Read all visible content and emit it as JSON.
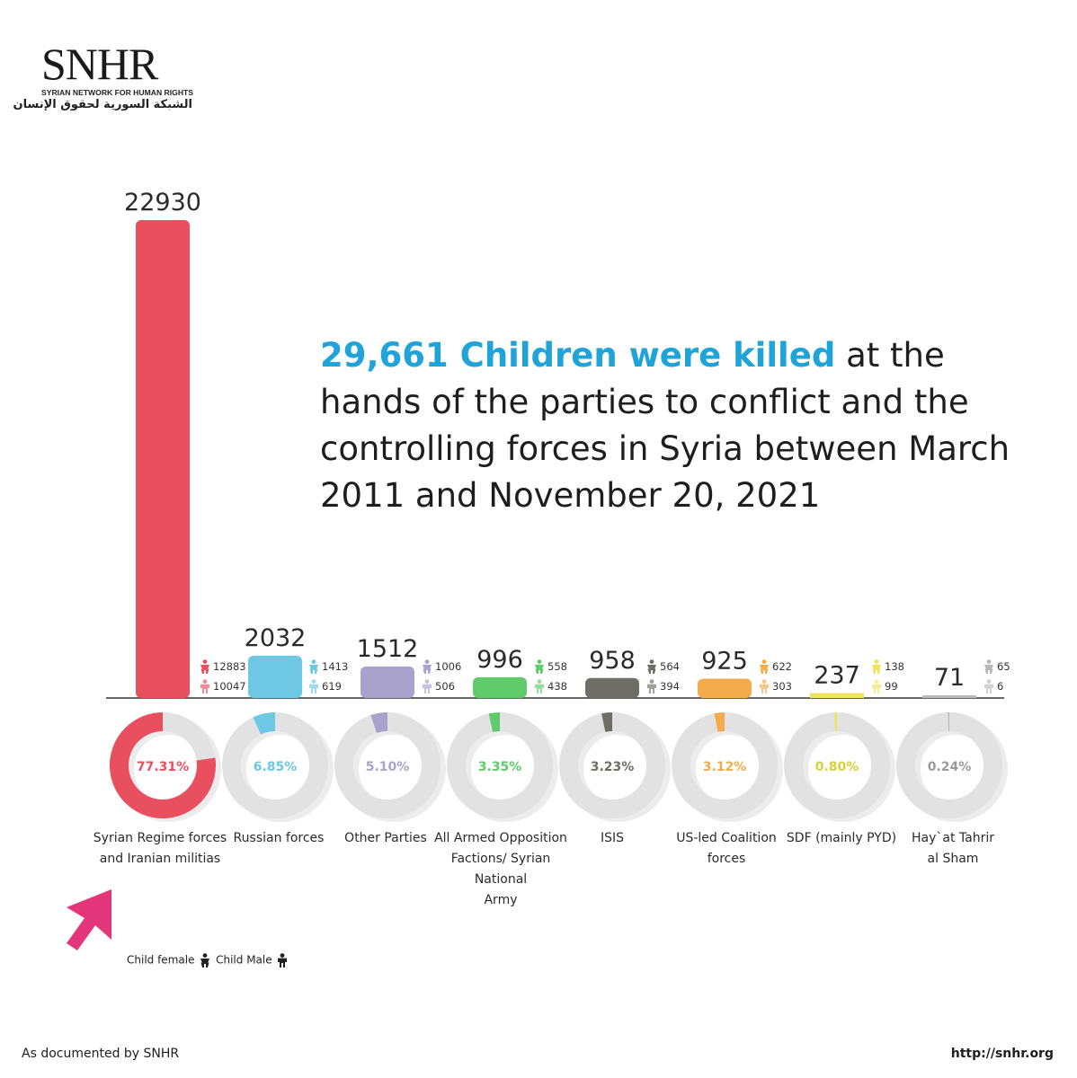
{
  "logo": {
    "main": "SNHR",
    "english": "SYRIAN NETWORK FOR HUMAN RIGHTS",
    "arabic": "الشبكة السورية لحقوق الإنسان"
  },
  "headline": {
    "highlight": "29,661 Children were killed",
    "rest": " at the hands of the parties to conflict and the controlling forces in Syria between March 2011 and November 20, 2021"
  },
  "colors": {
    "highlight": "#1fa3d8",
    "ring_background": "#e2e2e2",
    "axis": "#333333"
  },
  "chart_data": {
    "type": "bar",
    "categories": [
      "Syrian Regime forces and Iranian militias",
      "Russian forces",
      "Other Parties",
      "All Armed Opposition Factions/ Syrian National Army",
      "ISIS",
      "US-led Coalition forces",
      "SDF (mainly PYD)",
      "Hay`at Tahrir al Sham"
    ],
    "category_lines": [
      [
        "Syrian Regime forces",
        "and Iranian militias"
      ],
      [
        "Russian forces"
      ],
      [
        "Other Parties"
      ],
      [
        "All Armed Opposition",
        "Factions/ Syrian National",
        "Army"
      ],
      [
        "ISIS"
      ],
      [
        "US-led Coalition",
        "forces"
      ],
      [
        "SDF (mainly PYD)"
      ],
      [
        "Hay`at Tahrir",
        "al Sham"
      ]
    ],
    "values": [
      22930,
      2032,
      1512,
      996,
      958,
      925,
      237,
      71
    ],
    "female": [
      12883,
      1413,
      1006,
      558,
      564,
      622,
      138,
      65
    ],
    "male": [
      10047,
      619,
      506,
      438,
      394,
      303,
      99,
      6
    ],
    "percent_values": [
      77.31,
      6.85,
      5.1,
      3.35,
      3.23,
      3.12,
      0.8,
      0.24
    ],
    "percent_labels": [
      "77.31%",
      "6.85%",
      "5.10%",
      "3.35%",
      "3.23%",
      "3.12%",
      "0.80%",
      "0.24%"
    ],
    "colors": [
      "#e8505f",
      "#6ec8e4",
      "#a8a2cc",
      "#5fcb6b",
      "#6e6e66",
      "#f4ab4c",
      "#ede45b",
      "#b8b8b8"
    ],
    "ylim": [
      0,
      22930
    ]
  },
  "legend": {
    "female_label": "Child female",
    "male_label": "Child Male"
  },
  "footer": {
    "left": "As documented by SNHR",
    "right": "http://snhr.org"
  }
}
